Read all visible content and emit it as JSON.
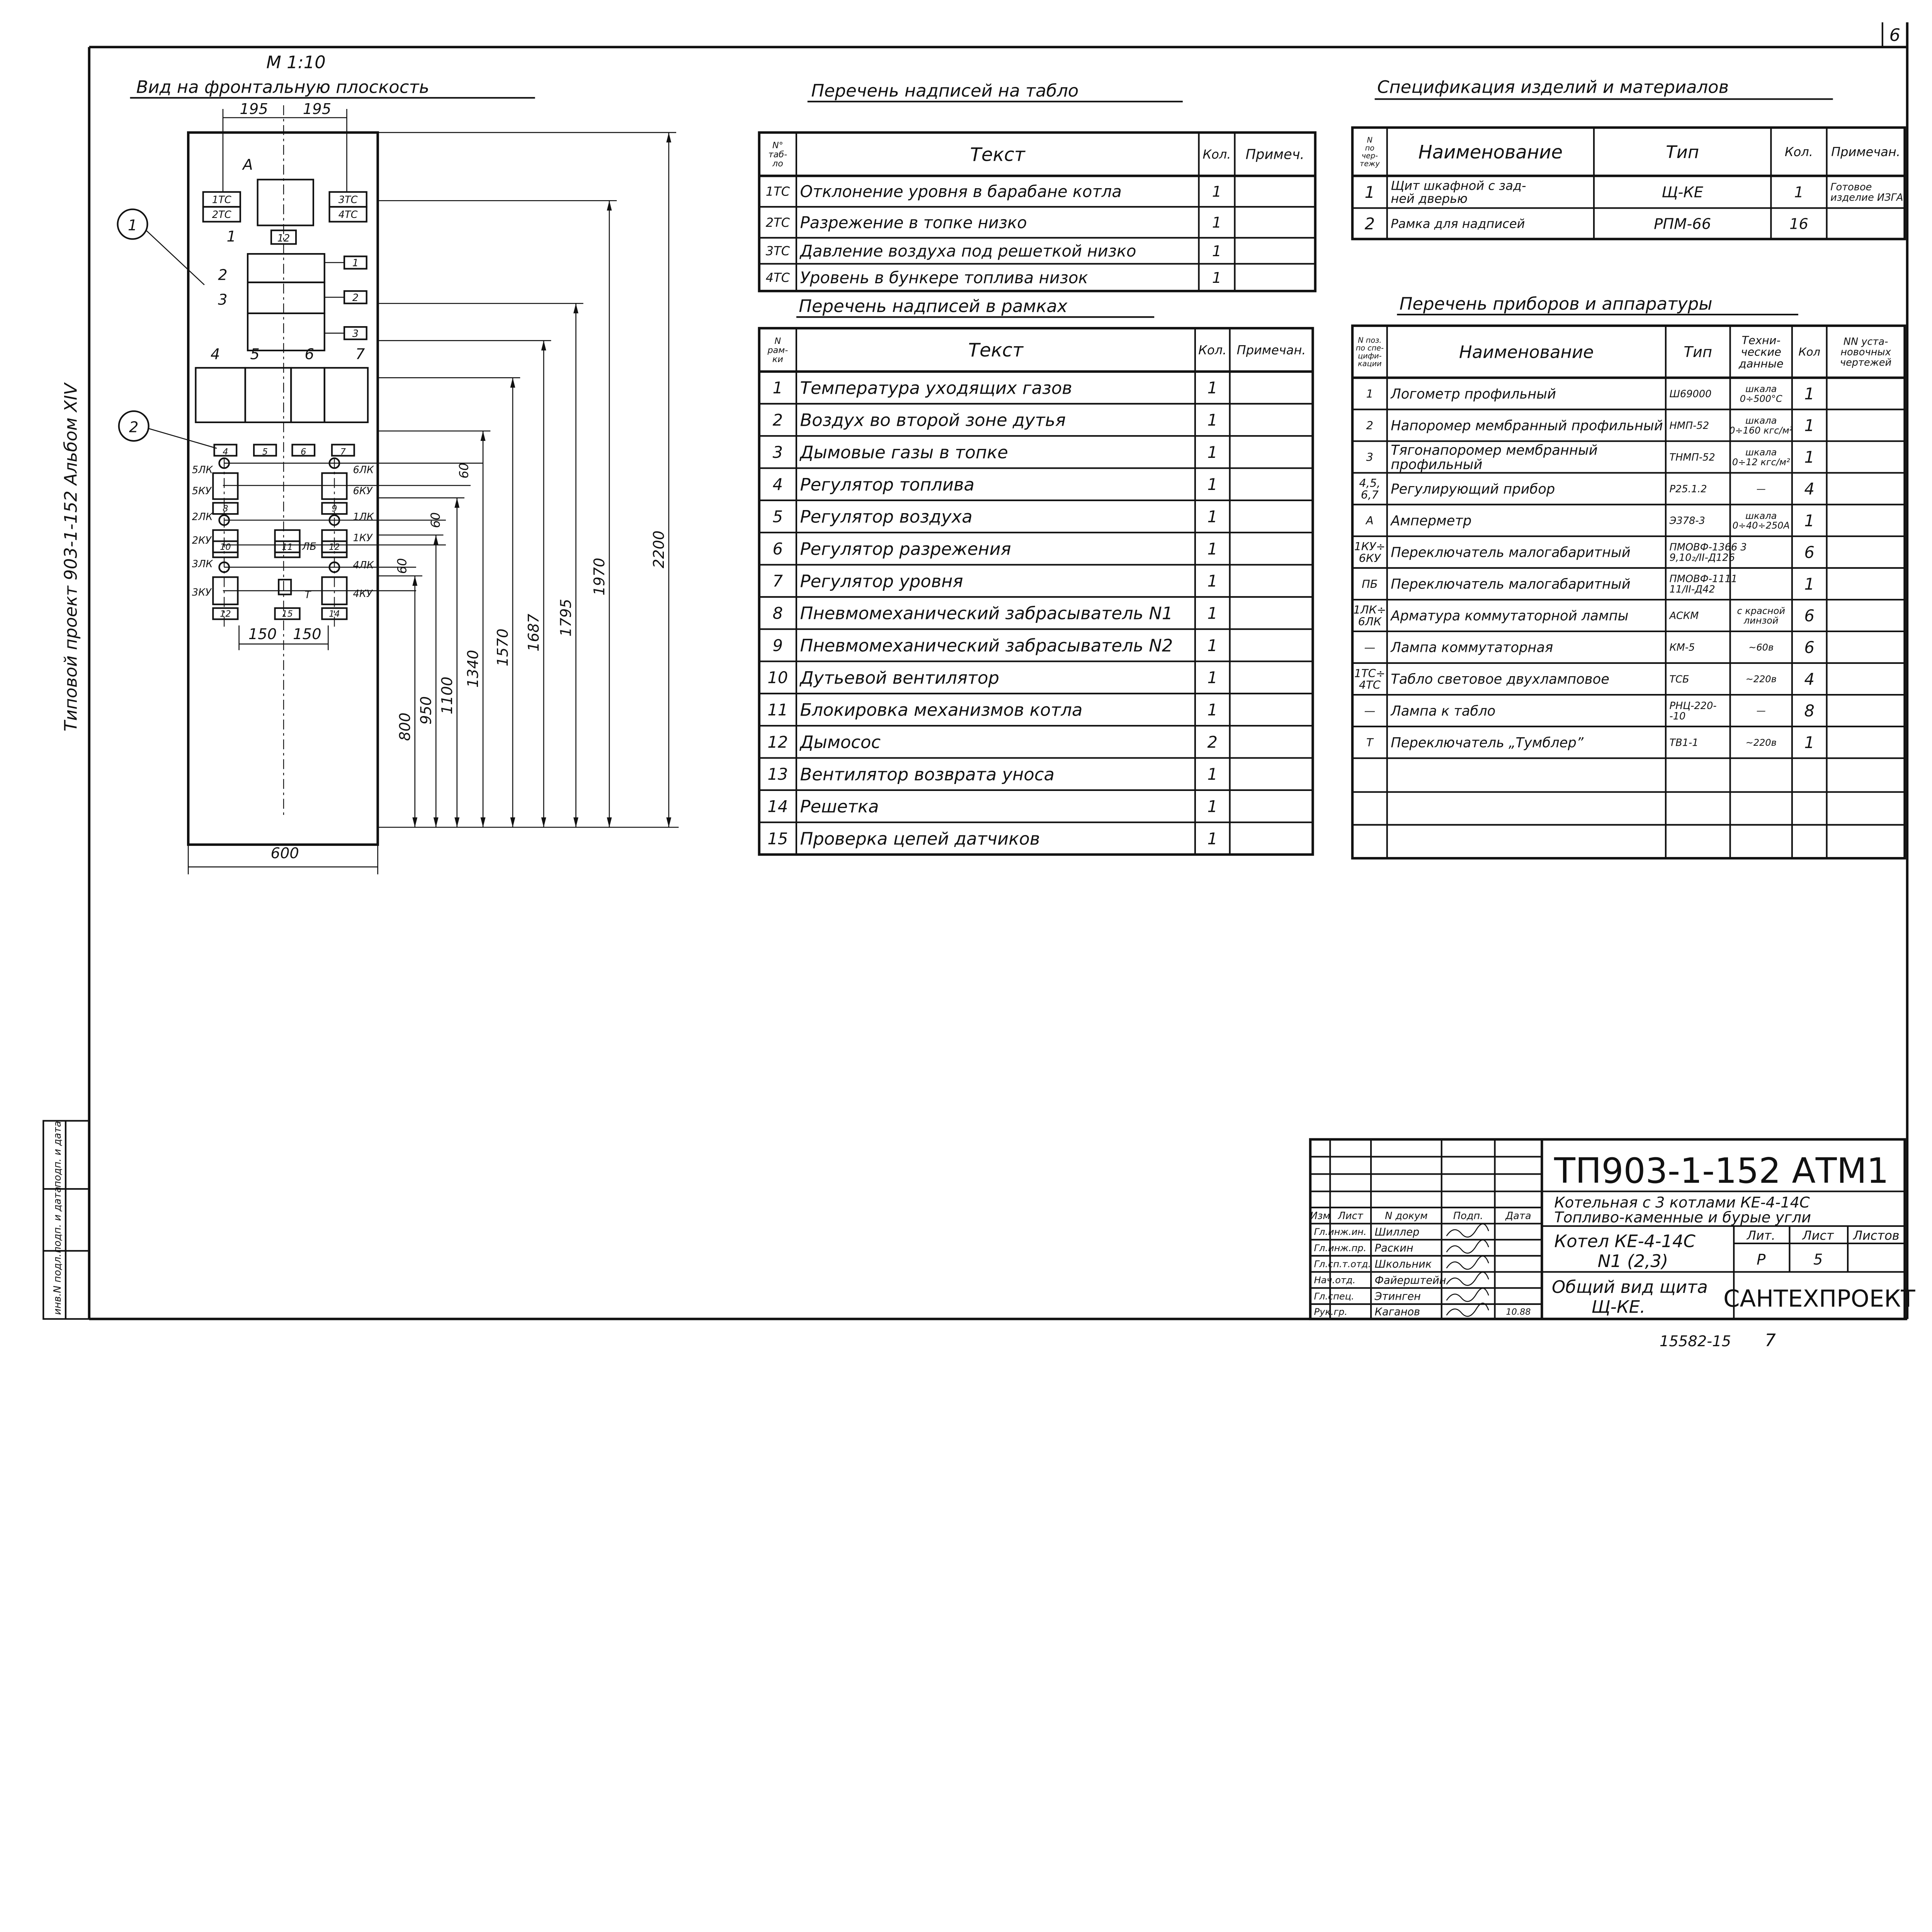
{
  "sheet": {
    "corner_mark": "6",
    "side_title": "Типовой проект 903-1-152 Альбом XIV",
    "stamp_labels": [
      "инв.N подл.",
      "подп. и дата",
      "подп. и дата"
    ],
    "archive_number": "15582-15",
    "archive_suffix": "7"
  },
  "view": {
    "scale": "М 1:10",
    "title": "Вид на фронтальную плоскость",
    "callouts": [
      "1",
      "2"
    ],
    "ammeter": "А",
    "ammeter_frame": "12",
    "signal_boards": [
      "1ТС",
      "2ТС",
      "3ТС",
      "4ТС"
    ],
    "instrument_numbers": [
      "1",
      "2",
      "3",
      "4",
      "5",
      "6",
      "7"
    ],
    "frame_numbers": [
      "1",
      "2",
      "3",
      "4",
      "5",
      "6",
      "7",
      "8",
      "9",
      "10",
      "11",
      "12",
      "12",
      "15",
      "14"
    ],
    "lamp_labels": [
      "5ЛК",
      "6ЛК",
      "2ЛК",
      "1ЛК",
      "3ЛК",
      "4ЛК"
    ],
    "switch_labels": [
      "5КУ",
      "6КУ",
      "2КУ",
      "1КУ",
      "3КУ",
      "4КУ",
      "ЛБ",
      "Т"
    ],
    "dimensions": {
      "top_left": "195",
      "top_right": "195",
      "bottom_left": "150",
      "bottom_right": "150",
      "width": "600",
      "pitch": [
        "60",
        "60",
        "60"
      ],
      "heights": [
        "800",
        "950",
        "1100",
        "1340",
        "1570",
        "1687",
        "1795",
        "1970",
        "2200"
      ]
    }
  },
  "board_table": {
    "title": "Перечень надписей на табло",
    "headers": [
      "N°\nтаб-\nло",
      "Текст",
      "Кол.",
      "Примеч."
    ],
    "rows": [
      [
        "1ТС",
        "Отклонение уровня в барабане котла",
        "1",
        ""
      ],
      [
        "2ТС",
        "Разрежение в топке низко",
        "1",
        ""
      ],
      [
        "3ТС",
        "Давление воздуха под решеткой низко",
        "1",
        ""
      ],
      [
        "4ТС",
        "Уровень в бункере топлива низок",
        "1",
        ""
      ]
    ]
  },
  "frames_table": {
    "title": "Перечень надписей в рамках",
    "headers": [
      "N\nрам-\nки",
      "Текст",
      "Кол.",
      "Примечан."
    ],
    "rows": [
      [
        "1",
        "Температура уходящих газов",
        "1",
        ""
      ],
      [
        "2",
        "Воздух во второй зоне дутья",
        "1",
        ""
      ],
      [
        "3",
        "Дымовые газы в топке",
        "1",
        ""
      ],
      [
        "4",
        "Регулятор топлива",
        "1",
        ""
      ],
      [
        "5",
        "Регулятор воздуха",
        "1",
        ""
      ],
      [
        "6",
        "Регулятор разрежения",
        "1",
        ""
      ],
      [
        "7",
        "Регулятор уровня",
        "1",
        ""
      ],
      [
        "8",
        "Пневмомеханический забрасыватель N1",
        "1",
        ""
      ],
      [
        "9",
        "Пневмомеханический забрасыватель N2",
        "1",
        ""
      ],
      [
        "10",
        "Дутьевой вентилятор",
        "1",
        ""
      ],
      [
        "11",
        "Блокировка механизмов котла",
        "1",
        ""
      ],
      [
        "12",
        "Дымосос",
        "2",
        ""
      ],
      [
        "13",
        "Вентилятор возврата уноса",
        "1",
        ""
      ],
      [
        "14",
        "Решетка",
        "1",
        ""
      ],
      [
        "15",
        "Проверка цепей датчиков",
        "1",
        ""
      ]
    ]
  },
  "spec_table": {
    "title": "Спецификация изделий и материалов",
    "headers": [
      "N\nпо\nчер-\nтежу",
      "Наименование",
      "Тип",
      "Кол.",
      "Примечан."
    ],
    "rows": [
      [
        "1",
        "Щит шкафной с зад-\nней дверью",
        "Щ-КЕ",
        "1",
        "Готовое\nизделие ИЗГА"
      ],
      [
        "2",
        "Рамка для надписей",
        "РПМ-66",
        "16",
        ""
      ]
    ]
  },
  "instruments_table": {
    "title": "Перечень приборов и аппаратуры",
    "headers": [
      "N поз.\nпо спе-\nцифи-\nкации",
      "Наименование",
      "Тип",
      "Техни-\nческие\nданные",
      "Кол",
      "NN уста-\nновочных\nчертежей"
    ],
    "rows": [
      [
        "1",
        "Логометр профильный",
        "Ш69000",
        "шкала\n0÷500°С",
        "1",
        ""
      ],
      [
        "2",
        "Напоромер мембранный профильный",
        "НМП-52",
        "шкала\n0÷160 кгс/м²",
        "1",
        ""
      ],
      [
        "3",
        "Тягонапоромер мембранный\nпрофильный",
        "ТНМП-52",
        "шкала\n0÷12 кгс/м²",
        "1",
        ""
      ],
      [
        "4,5,\n6,7",
        "Регулирующий прибор",
        "Р25.1.2",
        "—",
        "4",
        ""
      ],
      [
        "А",
        "Амперметр",
        "Э378-3",
        "шкала\n0÷40÷250А",
        "1",
        ""
      ],
      [
        "1КУ÷\n6КУ",
        "Переключатель малогабаритный",
        "ПМОВФ-1366 3\n9,10₂/II-Д126",
        "",
        "6",
        ""
      ],
      [
        "ПБ",
        "Переключатель малогабаритный",
        "ПМОВФ-1111\n11/II-Д42",
        "",
        "1",
        ""
      ],
      [
        "1ЛК÷\n6ЛК",
        "Арматура коммутаторной лампы",
        "АСКМ",
        "с красной\nлинзой",
        "6",
        ""
      ],
      [
        "—",
        "Лампа коммутаторная",
        "КМ-5",
        "~60в",
        "6",
        ""
      ],
      [
        "1ТС÷\n4ТС",
        "Табло световое двухламповое",
        "ТСБ",
        "~220в",
        "4",
        ""
      ],
      [
        "—",
        "Лампа к табло",
        "РНЦ-220-\n-10",
        "—",
        "8",
        ""
      ],
      [
        "Т",
        "Переключатель „Тумблер”",
        "ТВ1-1",
        "~220в",
        "1",
        ""
      ],
      [
        "",
        "",
        "",
        "",
        "",
        ""
      ],
      [
        "",
        "",
        "",
        "",
        "",
        ""
      ],
      [
        "",
        "",
        "",
        "",
        "",
        ""
      ]
    ]
  },
  "title_block": {
    "code": "ТП903-1-152 АТМ1",
    "project": "Котельная с 3 котлами КЕ-4-14С",
    "fuel": "Топливо-каменные и бурые угли",
    "object": "Котел КЕ-4-14С",
    "object_number": "N1 (2,3)",
    "sheet_title": "Общий вид щита",
    "sheet_subtitle": "Щ-КЕ.",
    "organization": "САНТЕХПРОЕКТ",
    "stage_label": "Лит.",
    "sheet_label": "Лист",
    "sheets_label": "Листов",
    "stage": "Р",
    "sheet": "5",
    "headers": [
      "Изм",
      "Лист",
      "N докум",
      "Подп.",
      "Дата"
    ],
    "signatories": [
      {
        "role": "Гл.инж.ин.",
        "name": "Шиллер"
      },
      {
        "role": "Гл.инж.пр.",
        "name": "Раскин"
      },
      {
        "role": "Гл.сп.т.отд.",
        "name": "Школьник"
      },
      {
        "role": "Нач.отд.",
        "name": "Файерштейн"
      },
      {
        "role": "Гл.спец.",
        "name": "Этинген"
      },
      {
        "role": "Рук.гр.",
        "name": "Каганов"
      }
    ],
    "date": "10.88"
  }
}
